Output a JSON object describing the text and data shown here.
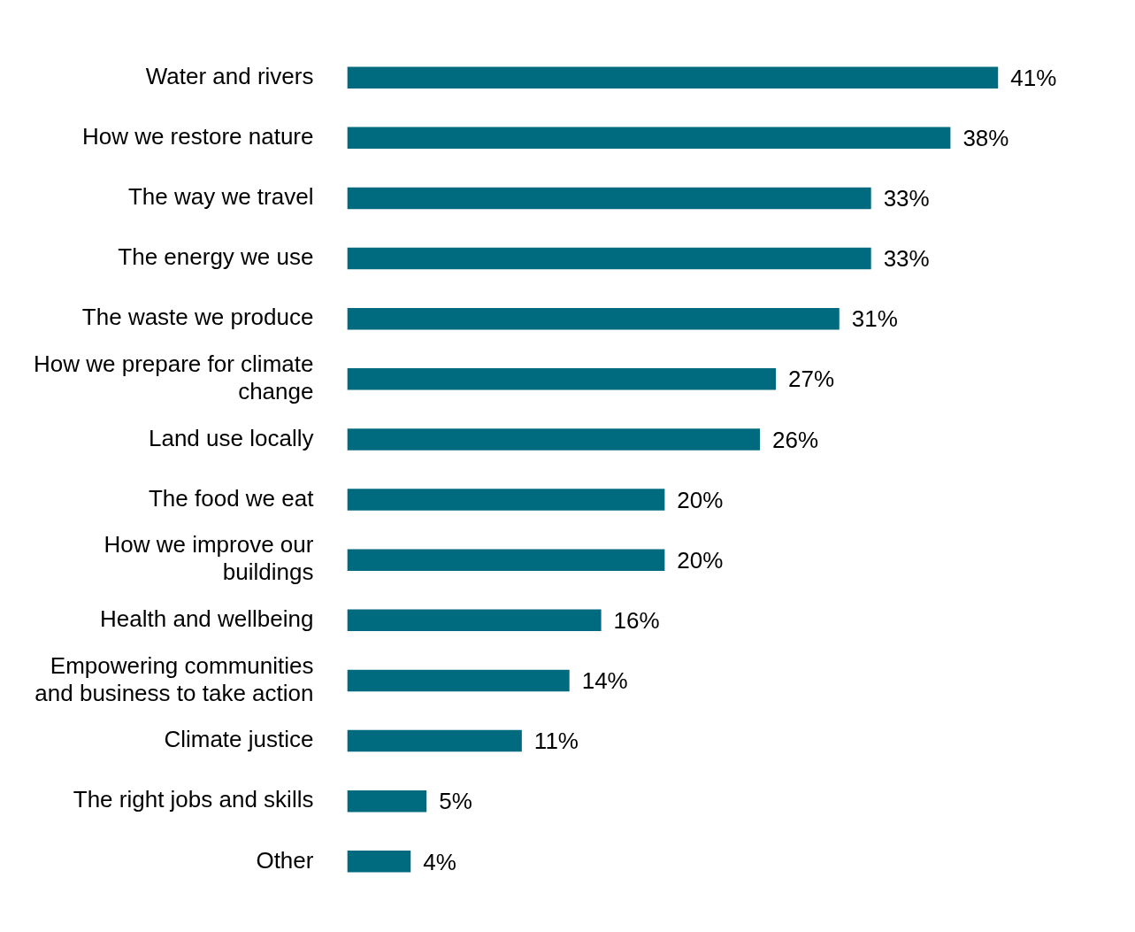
{
  "chart_data": {
    "type": "bar",
    "orientation": "horizontal",
    "categories": [
      "Water and rivers",
      "How we restore nature",
      "The way we travel",
      "The energy we use",
      "The waste we produce",
      "How we prepare for climate change",
      "Land use locally",
      "The food we eat",
      "How we improve our buildings",
      "Health and wellbeing",
      "Empowering communities and business to take action",
      "Climate justice",
      "The right jobs and skills",
      "Other"
    ],
    "values": [
      41,
      38,
      33,
      33,
      31,
      27,
      26,
      20,
      20,
      16,
      14,
      11,
      5,
      4
    ],
    "value_labels": [
      "41%",
      "38%",
      "33%",
      "33%",
      "31%",
      "27%",
      "26%",
      "20%",
      "20%",
      "16%",
      "14%",
      "11%",
      "5%",
      "4%"
    ],
    "color": "#006a7e",
    "legend": false
  }
}
